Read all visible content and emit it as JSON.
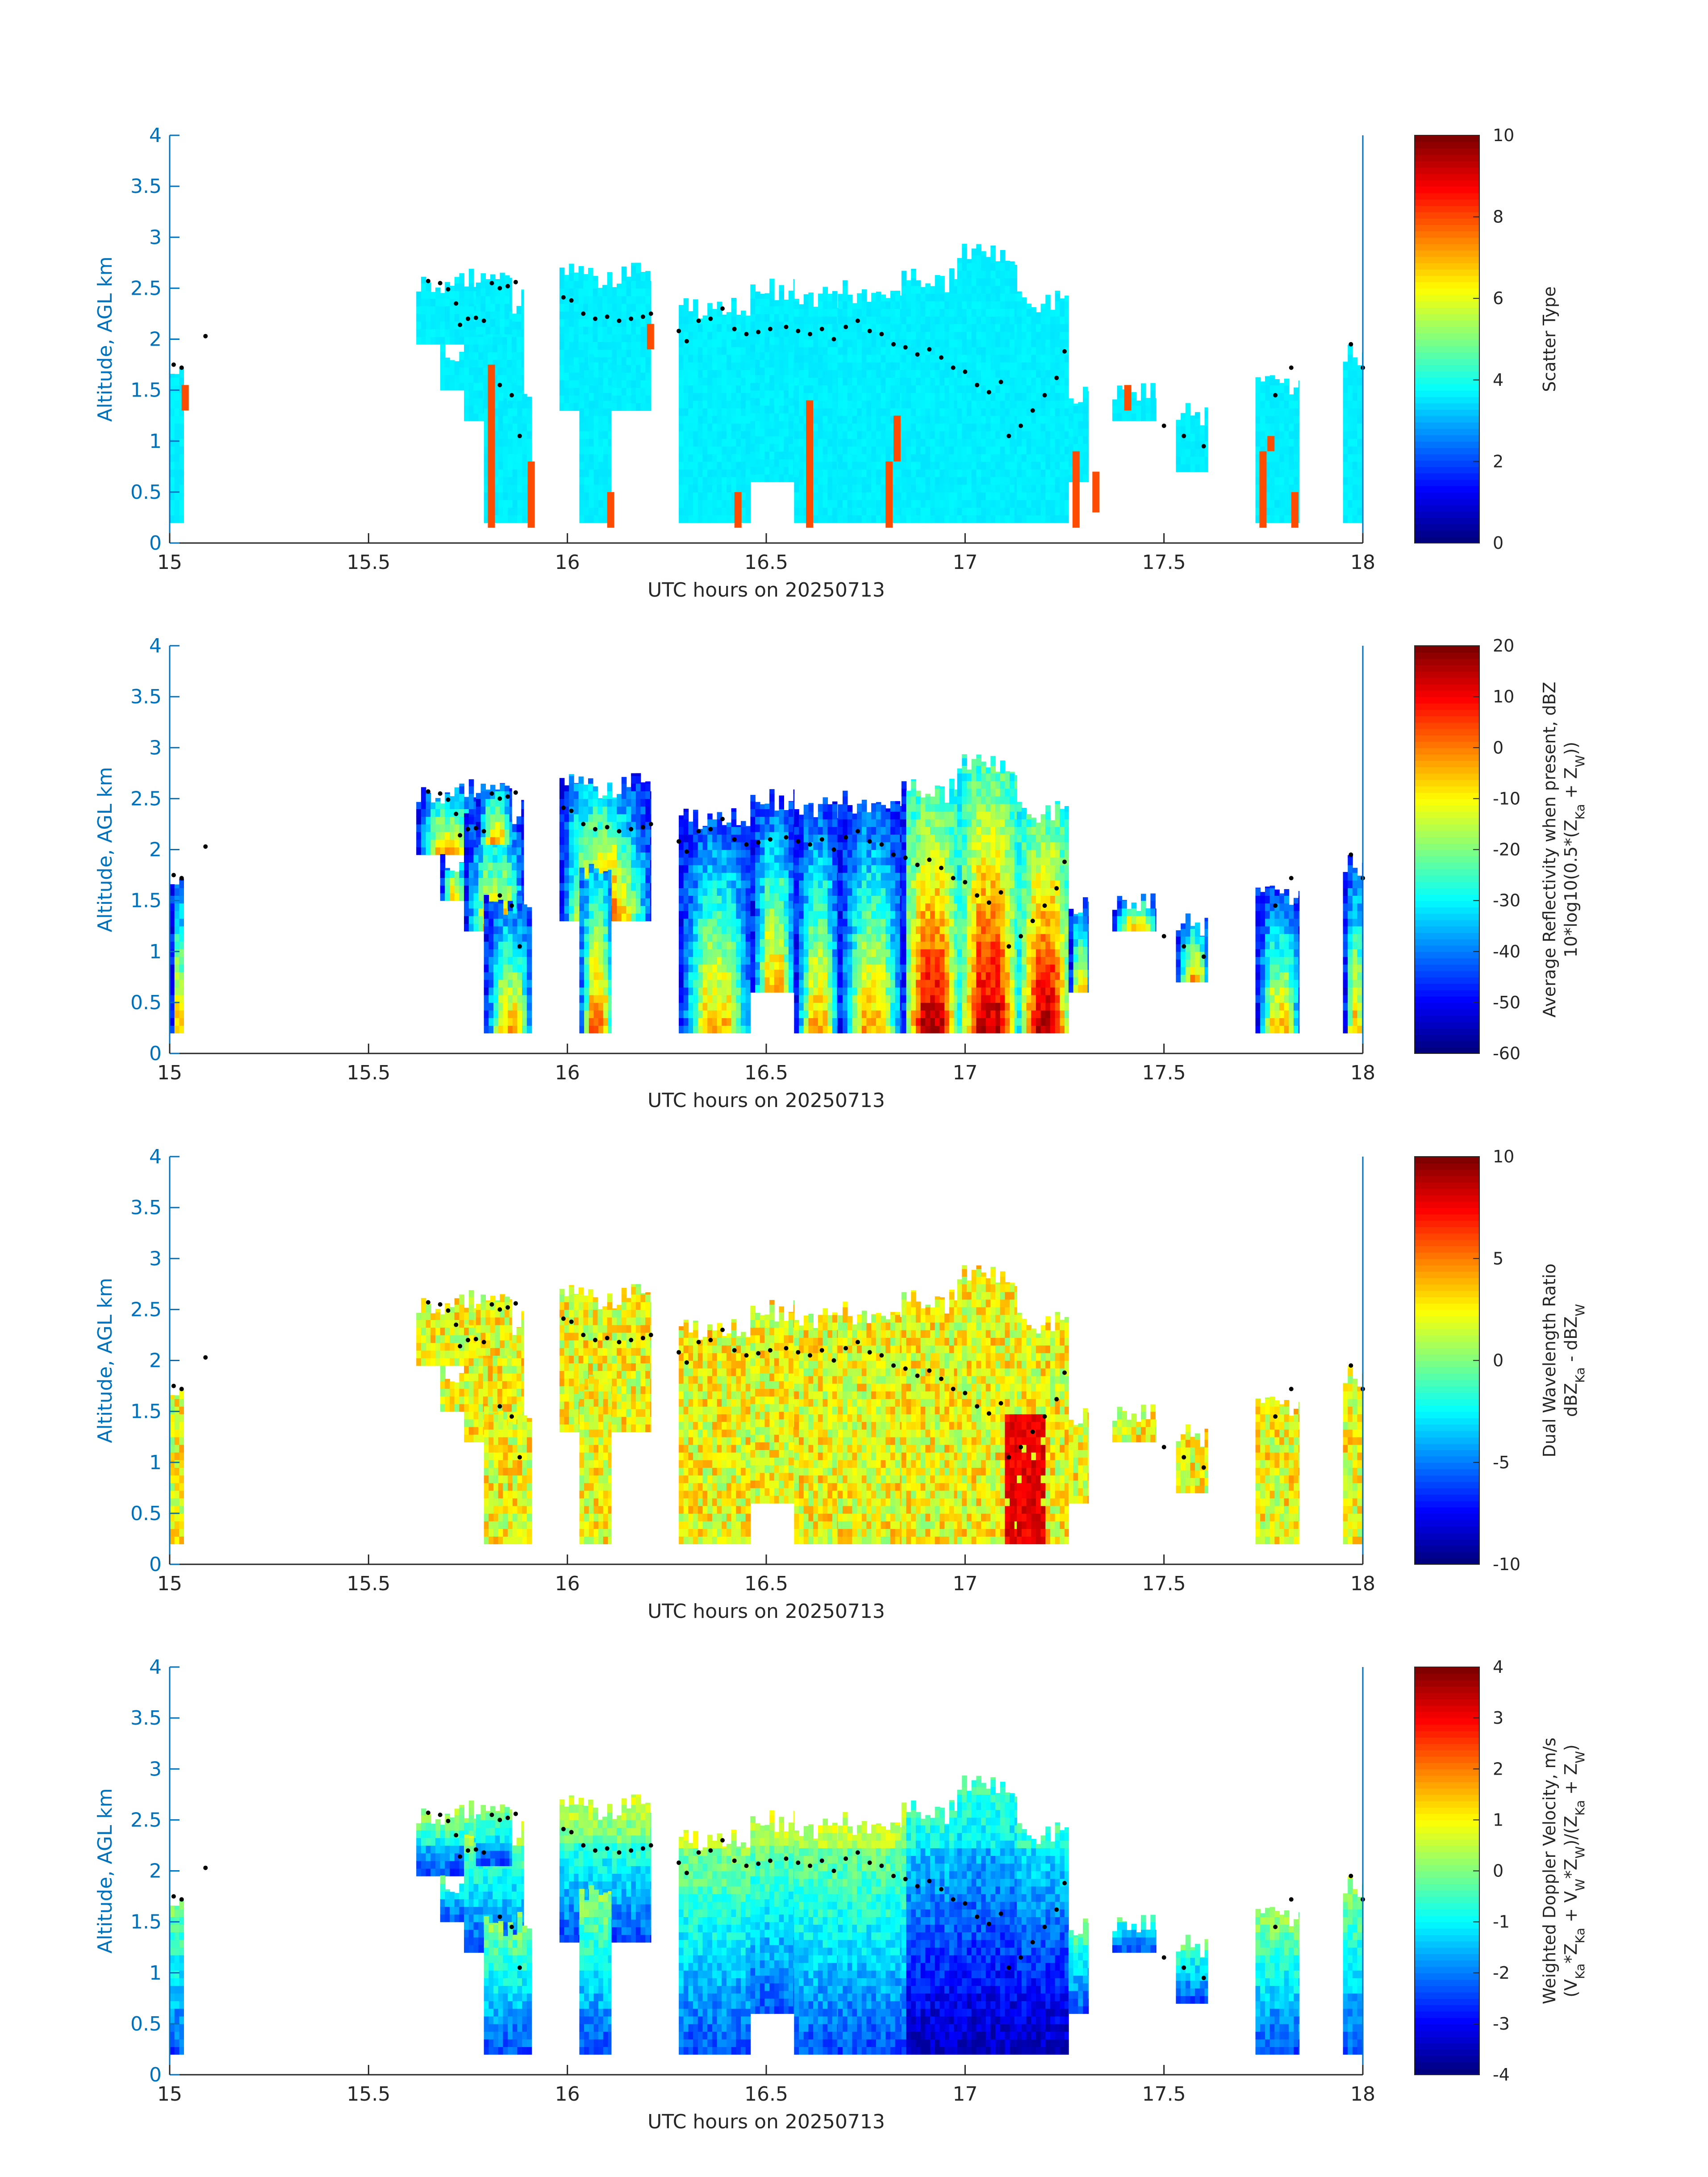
{
  "chart_data": [
    {
      "type": "heatmap",
      "xlabel": "UTC hours on 20250713",
      "ylabel": "Altitude, AGL km",
      "xlim": [
        15,
        18
      ],
      "ylim": [
        0,
        4
      ],
      "xticks": [
        "15",
        "15.5",
        "16",
        "16.5",
        "17",
        "17.5",
        "18"
      ],
      "yticks": [
        "0",
        "0.5",
        "1",
        "1.5",
        "2",
        "2.5",
        "3",
        "3.5",
        "4"
      ],
      "colorbar": {
        "label_lines": [
          "Scatter Type"
        ],
        "range": [
          0,
          10
        ],
        "ticks": [
          "0",
          "2",
          "4",
          "6",
          "8",
          "10"
        ]
      },
      "dominant_value": "~3.5 (cyan) with isolated ~8 (orange-red) columns",
      "colormap": "jet"
    },
    {
      "type": "heatmap",
      "xlabel": "UTC hours on 20250713",
      "ylabel": "Altitude, AGL km",
      "xlim": [
        15,
        18
      ],
      "ylim": [
        0,
        4
      ],
      "xticks": [
        "15",
        "15.5",
        "16",
        "16.5",
        "17",
        "17.5",
        "18"
      ],
      "yticks": [
        "0",
        "0.5",
        "1",
        "1.5",
        "2",
        "2.5",
        "3",
        "3.5",
        "4"
      ],
      "colorbar": {
        "label_lines": [
          "Average Reflectivity when present, dBZ",
          "10*log10(0.5*(Z_Ka + Z_W))"
        ],
        "range": [
          -60,
          20
        ],
        "ticks": [
          "-60",
          "-50",
          "-40",
          "-30",
          "-20",
          "-10",
          "0",
          "10",
          "20"
        ]
      },
      "colormap": "jet"
    },
    {
      "type": "heatmap",
      "xlabel": "UTC hours on 20250713",
      "ylabel": "Altitude, AGL km",
      "xlim": [
        15,
        18
      ],
      "ylim": [
        0,
        4
      ],
      "xticks": [
        "15",
        "15.5",
        "16",
        "16.5",
        "17",
        "17.5",
        "18"
      ],
      "yticks": [
        "0",
        "0.5",
        "1",
        "1.5",
        "2",
        "2.5",
        "3",
        "3.5",
        "4"
      ],
      "colorbar": {
        "label_lines": [
          "Dual Wavelength Ratio",
          "dBZ_Ka - dBZ_W"
        ],
        "range": [
          -10,
          10
        ],
        "ticks": [
          "-10",
          "-5",
          "0",
          "5",
          "10"
        ]
      },
      "colormap": "jet"
    },
    {
      "type": "heatmap",
      "xlabel": "UTC hours on 20250713",
      "ylabel": "Altitude, AGL km",
      "xlim": [
        15,
        18
      ],
      "ylim": [
        0,
        4
      ],
      "xticks": [
        "15",
        "15.5",
        "16",
        "16.5",
        "17",
        "17.5",
        "18"
      ],
      "yticks": [
        "0",
        "0.5",
        "1",
        "1.5",
        "2",
        "2.5",
        "3",
        "3.5",
        "4"
      ],
      "colorbar": {
        "label_lines": [
          "Weighted Doppler Velocity, m/s",
          "(V_Ka*Z_Ka + V_W*Z_W)/(Z_Ka + Z_W)"
        ],
        "range": [
          -4,
          4
        ],
        "ticks": [
          "-4",
          "-3",
          "-2",
          "-1",
          "0",
          "1",
          "2",
          "3",
          "4"
        ]
      },
      "colormap": "jet"
    }
  ],
  "shared": {
    "cloud_columns": [
      {
        "t0": 15.0,
        "t1": 15.035,
        "bot": 0.2,
        "top": 1.85
      },
      {
        "t0": 15.62,
        "t1": 15.77,
        "bot": 1.95,
        "top": 2.7
      },
      {
        "t0": 15.68,
        "t1": 15.74,
        "bot": 1.5,
        "top": 2.0
      },
      {
        "t0": 15.74,
        "t1": 15.89,
        "bot": 1.2,
        "top": 2.5
      },
      {
        "t0": 15.77,
        "t1": 15.86,
        "bot": 2.05,
        "top": 2.75
      },
      {
        "t0": 15.79,
        "t1": 15.91,
        "bot": 0.2,
        "top": 1.6
      },
      {
        "t0": 15.98,
        "t1": 16.21,
        "bot": 1.3,
        "top": 2.75
      },
      {
        "t0": 16.03,
        "t1": 16.11,
        "bot": 0.2,
        "top": 1.9
      },
      {
        "t0": 16.28,
        "t1": 16.46,
        "bot": 0.2,
        "top": 2.45
      },
      {
        "t0": 16.46,
        "t1": 16.57,
        "bot": 0.6,
        "top": 2.6
      },
      {
        "t0": 16.57,
        "t1": 16.68,
        "bot": 0.2,
        "top": 2.55
      },
      {
        "t0": 16.68,
        "t1": 16.84,
        "bot": 0.2,
        "top": 2.6
      },
      {
        "t0": 16.84,
        "t1": 16.98,
        "bot": 0.2,
        "top": 2.7
      },
      {
        "t0": 16.98,
        "t1": 17.13,
        "bot": 0.2,
        "top": 2.95
      },
      {
        "t0": 17.13,
        "t1": 17.26,
        "bot": 0.2,
        "top": 2.5
      },
      {
        "t0": 17.26,
        "t1": 17.31,
        "bot": 0.6,
        "top": 1.6
      },
      {
        "t0": 17.37,
        "t1": 17.48,
        "bot": 1.2,
        "top": 1.6
      },
      {
        "t0": 17.53,
        "t1": 17.61,
        "bot": 0.7,
        "top": 1.4
      },
      {
        "t0": 17.73,
        "t1": 17.84,
        "bot": 0.2,
        "top": 1.65
      },
      {
        "t0": 17.95,
        "t1": 18.0,
        "bot": 0.2,
        "top": 1.95
      }
    ],
    "black_dots": [
      [
        15.01,
        1.75
      ],
      [
        15.03,
        1.72
      ],
      [
        15.09,
        2.03
      ],
      [
        15.65,
        2.57
      ],
      [
        15.68,
        2.55
      ],
      [
        15.7,
        2.49
      ],
      [
        15.72,
        2.35
      ],
      [
        15.73,
        2.14
      ],
      [
        15.75,
        2.2
      ],
      [
        15.77,
        2.21
      ],
      [
        15.79,
        2.18
      ],
      [
        15.81,
        2.55
      ],
      [
        15.83,
        2.5
      ],
      [
        15.85,
        2.52
      ],
      [
        15.87,
        2.56
      ],
      [
        15.83,
        1.55
      ],
      [
        15.86,
        1.45
      ],
      [
        15.88,
        1.05
      ],
      [
        15.99,
        2.41
      ],
      [
        16.01,
        2.38
      ],
      [
        16.04,
        2.25
      ],
      [
        16.07,
        2.2
      ],
      [
        16.1,
        2.22
      ],
      [
        16.13,
        2.18
      ],
      [
        16.16,
        2.2
      ],
      [
        16.19,
        2.22
      ],
      [
        16.21,
        2.25
      ],
      [
        16.28,
        2.08
      ],
      [
        16.3,
        1.98
      ],
      [
        16.33,
        2.18
      ],
      [
        16.36,
        2.2
      ],
      [
        16.39,
        2.3
      ],
      [
        16.42,
        2.1
      ],
      [
        16.45,
        2.05
      ],
      [
        16.48,
        2.07
      ],
      [
        16.51,
        2.1
      ],
      [
        16.55,
        2.12
      ],
      [
        16.58,
        2.08
      ],
      [
        16.61,
        2.05
      ],
      [
        16.64,
        2.1
      ],
      [
        16.67,
        2.0
      ],
      [
        16.7,
        2.12
      ],
      [
        16.73,
        2.18
      ],
      [
        16.76,
        2.08
      ],
      [
        16.79,
        2.05
      ],
      [
        16.82,
        1.95
      ],
      [
        16.85,
        1.92
      ],
      [
        16.88,
        1.85
      ],
      [
        16.91,
        1.9
      ],
      [
        16.94,
        1.82
      ],
      [
        16.97,
        1.72
      ],
      [
        17.0,
        1.68
      ],
      [
        17.03,
        1.55
      ],
      [
        17.06,
        1.48
      ],
      [
        17.09,
        1.58
      ],
      [
        17.11,
        1.05
      ],
      [
        17.14,
        1.15
      ],
      [
        17.17,
        1.3
      ],
      [
        17.2,
        1.45
      ],
      [
        17.23,
        1.62
      ],
      [
        17.25,
        1.88
      ],
      [
        17.5,
        1.15
      ],
      [
        17.55,
        1.05
      ],
      [
        17.6,
        0.95
      ],
      [
        17.78,
        1.45
      ],
      [
        17.82,
        1.72
      ],
      [
        17.97,
        1.95
      ],
      [
        18.0,
        1.72
      ]
    ]
  }
}
